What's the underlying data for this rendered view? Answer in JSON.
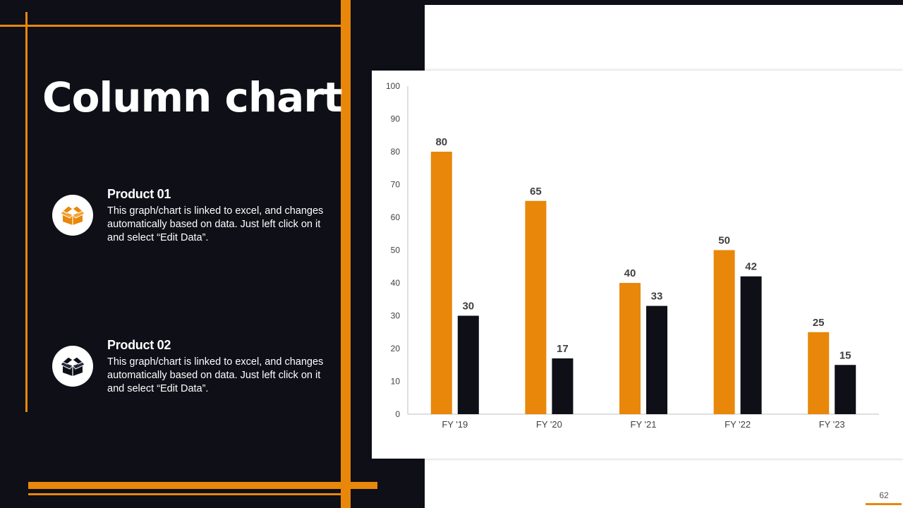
{
  "slide": {
    "title": "Column chart",
    "page_number": "62"
  },
  "colors": {
    "accent": "#e8870a",
    "dark": "#0e0f17",
    "background": "#ffffff"
  },
  "products": [
    {
      "icon": "box-icon",
      "name": "Product 01",
      "description": "This graph/chart is linked to excel, and changes automatically based on data. Just left click on it and select “Edit Data”."
    },
    {
      "icon": "box-icon",
      "name": "Product 02",
      "description": "This graph/chart is linked to excel, and changes automatically based on data. Just left click on it and select “Edit Data”."
    }
  ],
  "chart_data": {
    "type": "bar",
    "categories": [
      "FY '19",
      "FY '20",
      "FY '21",
      "FY '22",
      "FY '23"
    ],
    "series": [
      {
        "values": [
          80,
          65,
          40,
          50,
          25
        ],
        "color": "#e8870a"
      },
      {
        "values": [
          30,
          17,
          33,
          42,
          15
        ],
        "color": "#0e0f17"
      }
    ],
    "ylim": [
      0,
      100
    ],
    "yticks": [
      0,
      10,
      20,
      30,
      40,
      50,
      60,
      70,
      80,
      90,
      100
    ],
    "data_labels": true,
    "grid": false,
    "legend": "none"
  }
}
